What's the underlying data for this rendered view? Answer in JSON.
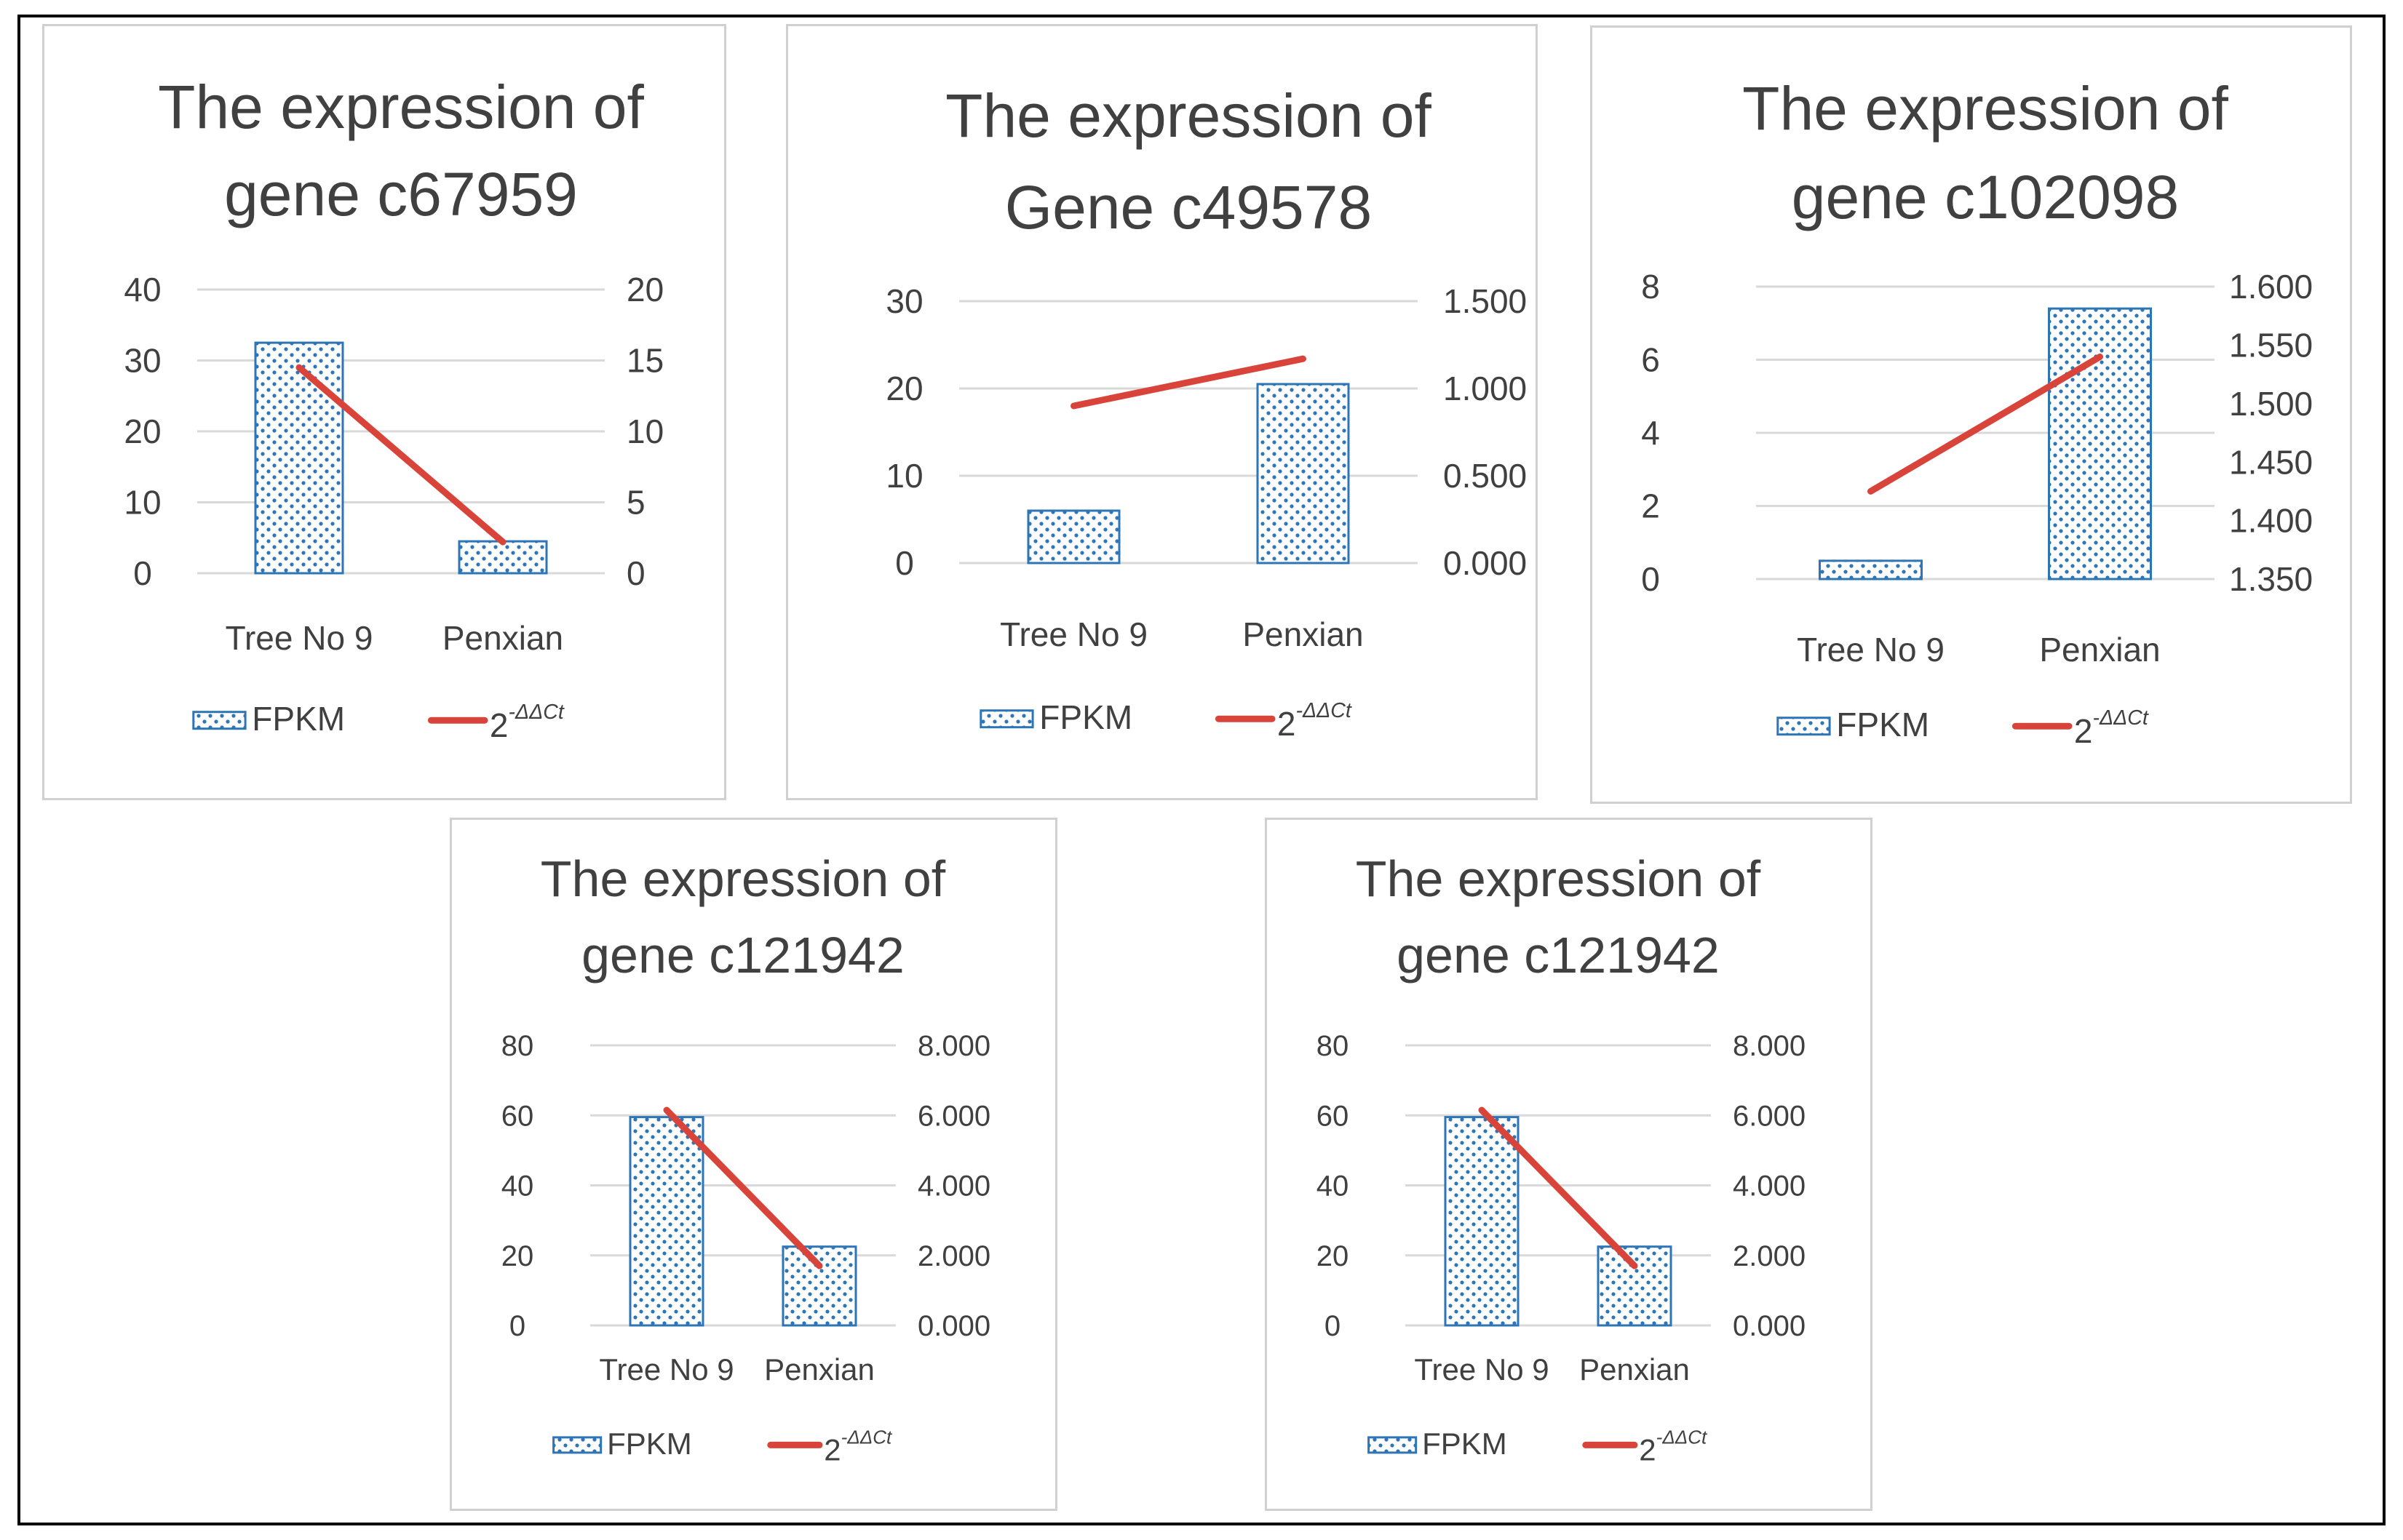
{
  "chart_data": [
    {
      "type": "bar+line",
      "title": [
        "The expression of",
        "gene c67959"
      ],
      "categories": [
        "Tree No 9",
        "Penxian"
      ],
      "series": [
        {
          "name": "FPKM",
          "kind": "bar",
          "axis": "left",
          "values": [
            32.5,
            4.5
          ]
        },
        {
          "name": "2^-ΔΔCt",
          "kind": "line",
          "axis": "right",
          "values": [
            14.5,
            2.2
          ]
        }
      ],
      "y_left": {
        "min": 0,
        "max": 40,
        "ticks": [
          "0",
          "10",
          "20",
          "30",
          "40"
        ]
      },
      "y_right": {
        "min": 0,
        "max": 20,
        "ticks": [
          "0",
          "5",
          "10",
          "15",
          "20"
        ]
      },
      "legend": [
        {
          "label": "FPKM"
        },
        {
          "base": "2",
          "sup": "-ΔΔCt"
        }
      ],
      "grid": true,
      "legend_position": "bottom"
    },
    {
      "type": "bar+line",
      "title": [
        "The expression of",
        "Gene c49578"
      ],
      "categories": [
        "Tree No 9",
        "Penxian"
      ],
      "series": [
        {
          "name": "FPKM",
          "kind": "bar",
          "axis": "left",
          "values": [
            6,
            20.5
          ]
        },
        {
          "name": "2^-ΔΔCt",
          "kind": "line",
          "axis": "right",
          "values": [
            0.9,
            1.17
          ]
        }
      ],
      "y_left": {
        "min": 0,
        "max": 30,
        "ticks": [
          "0",
          "10",
          "20",
          "30"
        ]
      },
      "y_right": {
        "min": 0,
        "max": 1.5,
        "ticks": [
          "0.000",
          "0.500",
          "1.000",
          "1.500"
        ]
      },
      "legend": [
        {
          "label": "FPKM"
        },
        {
          "base": "2",
          "sup": "-ΔΔCt"
        }
      ],
      "grid": true,
      "legend_position": "bottom"
    },
    {
      "type": "bar+line",
      "title": [
        "The expression of",
        "gene c102098"
      ],
      "categories": [
        "Tree No 9",
        "Penxian"
      ],
      "series": [
        {
          "name": "FPKM",
          "kind": "bar",
          "axis": "left",
          "values": [
            0.5,
            7.4
          ]
        },
        {
          "name": "2^-ΔΔCt",
          "kind": "line",
          "axis": "right",
          "values": [
            1.425,
            1.54
          ]
        }
      ],
      "y_left": {
        "min": 0,
        "max": 8,
        "ticks": [
          "0",
          "2",
          "4",
          "6",
          "8"
        ]
      },
      "y_right": {
        "min": 1.35,
        "max": 1.6,
        "ticks": [
          "1.350",
          "1.400",
          "1.450",
          "1.500",
          "1.550",
          "1.600"
        ]
      },
      "legend": [
        {
          "label": "FPKM"
        },
        {
          "base": "2",
          "sup": "-ΔΔCt"
        }
      ],
      "grid": true,
      "legend_position": "bottom"
    },
    {
      "type": "bar+line",
      "title": [
        "The expression of",
        "gene c121942"
      ],
      "categories": [
        "Tree No 9",
        "Penxian"
      ],
      "series": [
        {
          "name": "FPKM",
          "kind": "bar",
          "axis": "left",
          "values": [
            59.5,
            22.5
          ]
        },
        {
          "name": "2^-ΔΔCt",
          "kind": "line",
          "axis": "right",
          "values": [
            6.15,
            1.7
          ]
        }
      ],
      "y_left": {
        "min": 0,
        "max": 80,
        "ticks": [
          "0",
          "20",
          "40",
          "60",
          "80"
        ]
      },
      "y_right": {
        "min": 0,
        "max": 8,
        "ticks": [
          "0.000",
          "2.000",
          "4.000",
          "6.000",
          "8.000"
        ]
      },
      "legend": [
        {
          "label": "FPKM"
        },
        {
          "base": "2",
          "sup": "-ΔΔCt"
        }
      ],
      "grid": true,
      "legend_position": "bottom"
    },
    {
      "type": "bar+line",
      "title": [
        "The expression of",
        "gene c121942"
      ],
      "categories": [
        "Tree No 9",
        "Penxian"
      ],
      "series": [
        {
          "name": "FPKM",
          "kind": "bar",
          "axis": "left",
          "values": [
            59.5,
            22.5
          ]
        },
        {
          "name": "2^-ΔΔCt",
          "kind": "line",
          "axis": "right",
          "values": [
            6.15,
            1.7
          ]
        }
      ],
      "y_left": {
        "min": 0,
        "max": 80,
        "ticks": [
          "0",
          "20",
          "40",
          "60",
          "80"
        ]
      },
      "y_right": {
        "min": 0,
        "max": 8,
        "ticks": [
          "0.000",
          "2.000",
          "4.000",
          "6.000",
          "8.000"
        ]
      },
      "legend": [
        {
          "label": "FPKM"
        },
        {
          "base": "2",
          "sup": "-ΔΔCt"
        }
      ],
      "grid": true,
      "legend_position": "bottom"
    }
  ],
  "colors": {
    "bar_fill": "#ffffff",
    "bar_dots": "#2e75b6",
    "bar_edge": "#2e75b6",
    "line": "#d9443a",
    "grid": "#d9d9d9",
    "text": "#404040",
    "title": "#000000"
  }
}
